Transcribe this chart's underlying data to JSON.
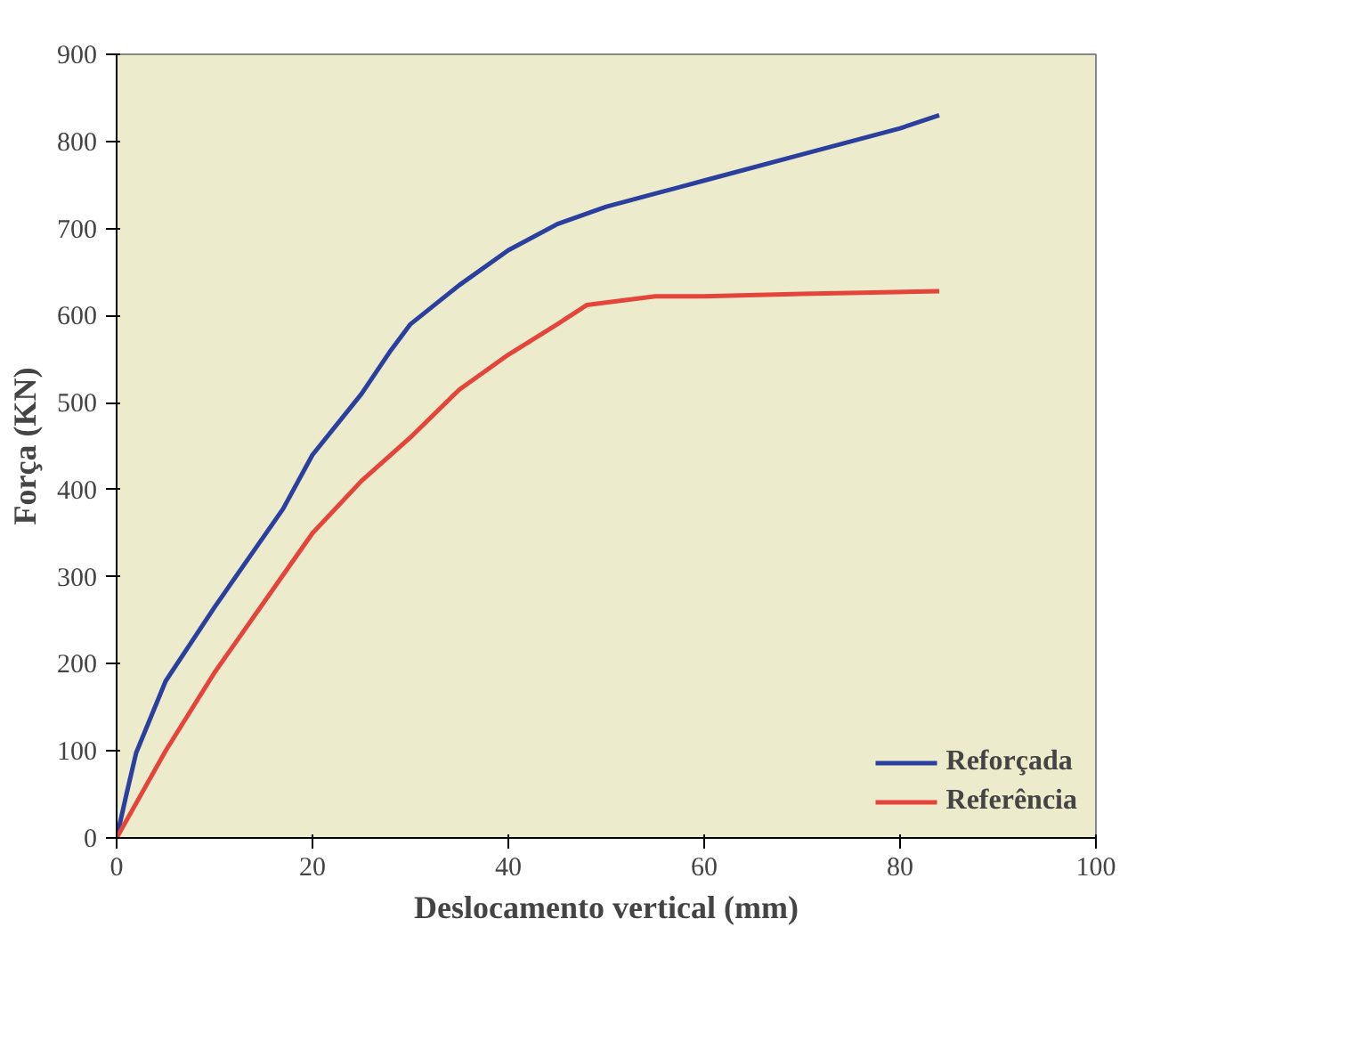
{
  "chart_data": {
    "type": "line",
    "xlabel": "Deslocamento vertical (mm)",
    "ylabel": "Força (KN)",
    "xlim": [
      0,
      100
    ],
    "xticks": [
      0,
      20,
      40,
      60,
      80,
      100
    ],
    "ylim": [
      0,
      900
    ],
    "yticks": [
      0,
      100,
      200,
      300,
      400,
      500,
      600,
      700,
      800,
      900
    ],
    "grid": false,
    "legend": "bottom right",
    "marker": "none",
    "line_style": "solid",
    "series": [
      {
        "name": "Reforçada",
        "color": "#2b3f9e",
        "x": [
          0,
          1,
          2,
          5,
          10,
          17,
          20,
          25,
          28,
          30,
          35,
          40,
          45,
          50,
          55,
          60,
          70,
          80,
          84
        ],
        "values": [
          0,
          50,
          98,
          180,
          265,
          378,
          440,
          510,
          560,
          590,
          635,
          675,
          705,
          725,
          740,
          755,
          785,
          815,
          830
        ]
      },
      {
        "name": "Referência",
        "color": "#e5443a",
        "x": [
          0,
          5,
          10,
          15,
          20,
          25,
          30,
          35,
          40,
          45,
          48,
          55,
          60,
          70,
          84
        ],
        "values": [
          0,
          100,
          190,
          270,
          350,
          410,
          460,
          515,
          555,
          590,
          612,
          622,
          622,
          625,
          628
        ]
      }
    ]
  }
}
